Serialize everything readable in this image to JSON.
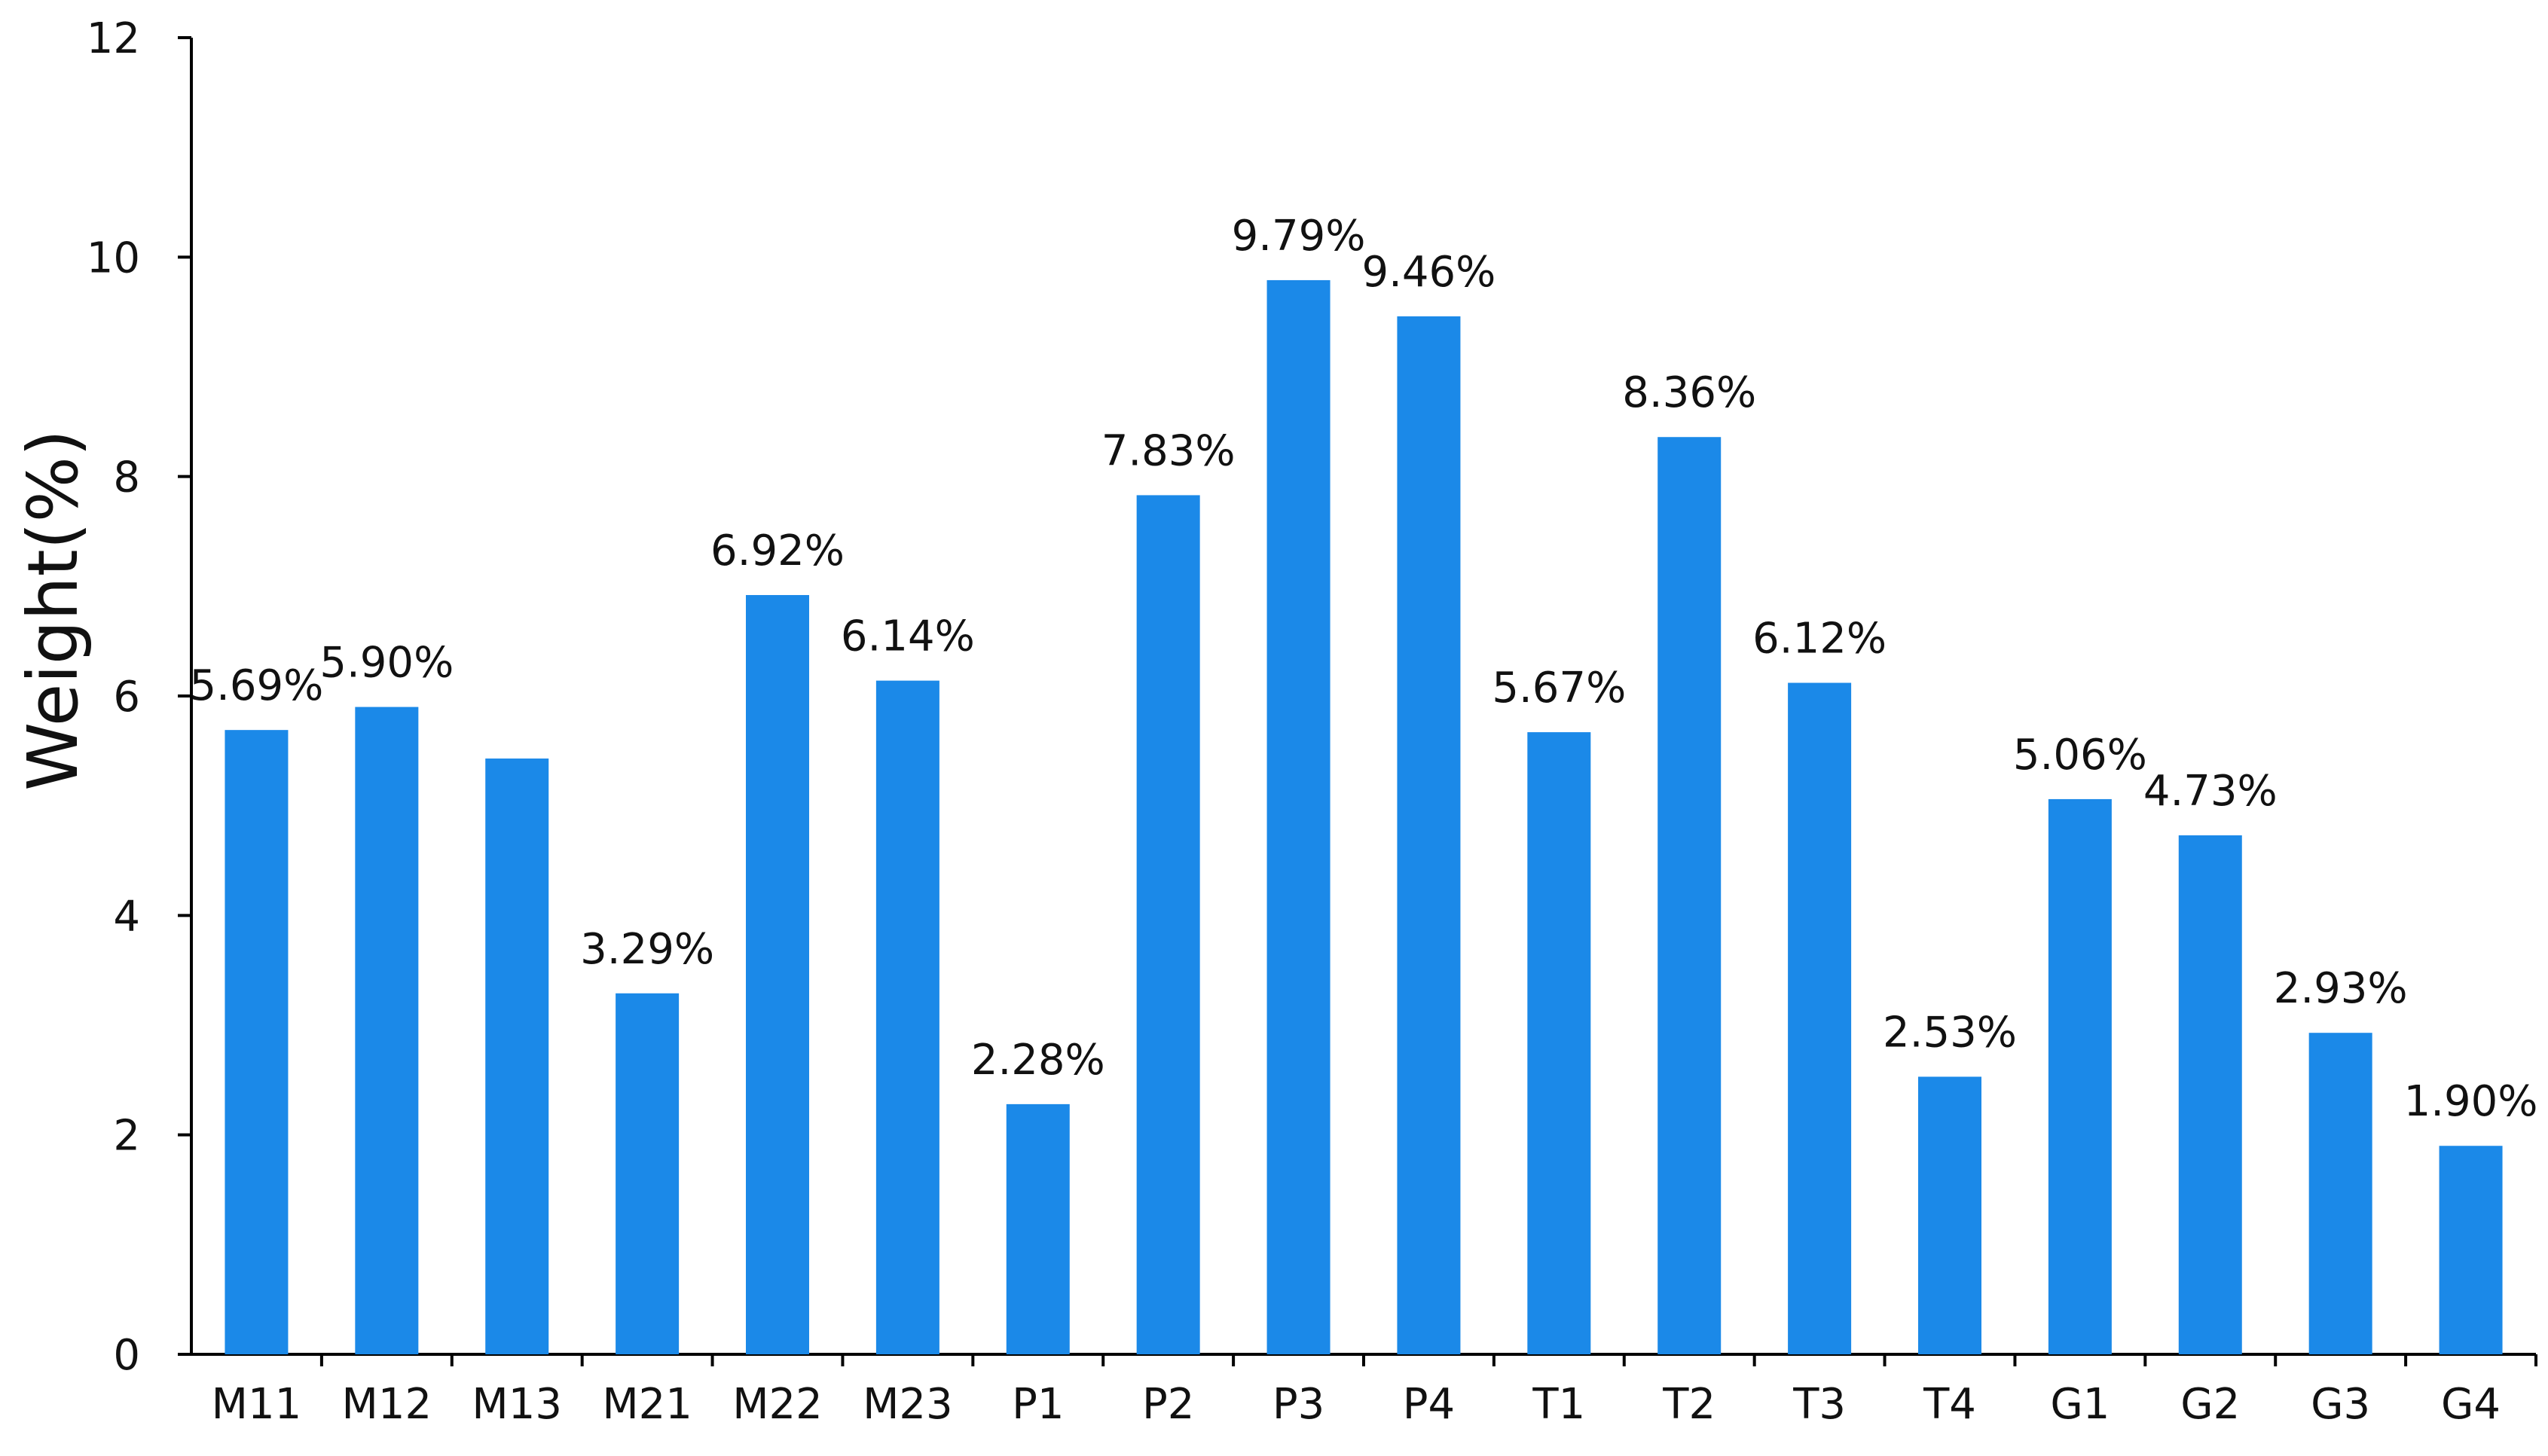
{
  "chart_data": {
    "type": "bar",
    "title": "",
    "xlabel": "",
    "ylabel": "Weight(%)",
    "ylim": [
      0,
      12
    ],
    "yticks": [
      "0",
      "2",
      "4",
      "6",
      "8",
      "10",
      "12"
    ],
    "grid": false,
    "legend": "none",
    "bar_color": "#1B89E8",
    "categories": [
      "M11",
      "M12",
      "M13",
      "M21",
      "M22",
      "M23",
      "P1",
      "P2",
      "P3",
      "P4",
      "T1",
      "T2",
      "T3",
      "T4",
      "G1",
      "G2",
      "G3",
      "G4"
    ],
    "values": [
      5.69,
      5.9,
      5.43,
      3.29,
      6.92,
      6.14,
      2.28,
      7.83,
      9.79,
      9.46,
      5.67,
      8.36,
      6.12,
      2.53,
      5.06,
      4.73,
      2.93,
      1.9
    ],
    "data_labels": [
      "5.69%",
      "5.90%",
      "",
      "3.29%",
      "6.92%",
      "6.14%",
      "2.28%",
      "7.83%",
      "9.79%",
      "9.46%",
      "5.67%",
      "8.36%",
      "6.12%",
      "2.53%",
      "5.06%",
      "4.73%",
      "2.93%",
      "1.90%"
    ]
  }
}
